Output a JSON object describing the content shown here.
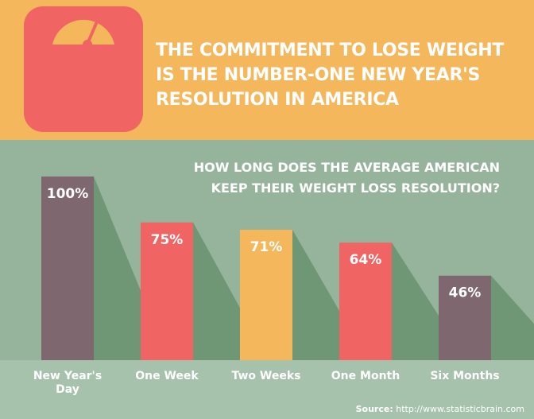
{
  "header": {
    "title_lines": [
      "THE COMMITMENT TO LOSE WEIGHT",
      "IS THE NUMBER-ONE NEW YEAR'S",
      "RESOLUTION IN AMERICA"
    ],
    "logo_icon": "bathroom-scale-icon"
  },
  "question": {
    "lines": [
      "HOW LONG DOES THE AVERAGE AMERICAN",
      "KEEP THEIR WEIGHT LOSS RESOLUTION?"
    ]
  },
  "source": {
    "label": "Source:",
    "url": "http://www.statisticbrain.com"
  },
  "colors": {
    "top_background": "#f5b75c",
    "chart_background": "#96b49c",
    "shadow": "#6f9675",
    "floor": "#a6c2ac",
    "purple": "#7f6770",
    "red": "#f06464",
    "orange": "#f5b75c"
  },
  "chart_data": {
    "type": "bar",
    "categories": [
      "New Year's Day",
      "One Week",
      "Two Weeks",
      "One Month",
      "Six Months"
    ],
    "values": [
      100,
      75,
      71,
      64,
      46
    ],
    "value_labels": [
      "100%",
      "75%",
      "71%",
      "64%",
      "46%"
    ],
    "bar_colors": [
      "#7f6770",
      "#f06464",
      "#f5b75c",
      "#f06464",
      "#7f6770"
    ],
    "unit": "%",
    "ylim": [
      0,
      100
    ],
    "title": "",
    "xlabel": "",
    "ylabel": "",
    "grid": false,
    "legend": "none"
  }
}
